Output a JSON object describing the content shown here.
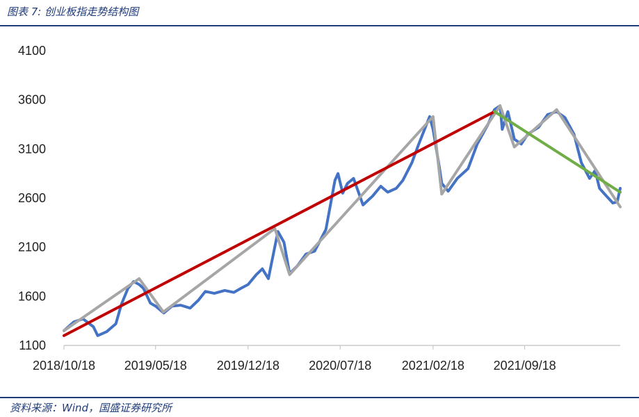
{
  "header": {
    "title": "图表 7:  创业板指走势结构图"
  },
  "footer": {
    "source": "资料来源：Wind，国盛证券研究所"
  },
  "chart_data": {
    "type": "line",
    "title": "图表 7:  创业板指走势结构图",
    "xlabel": "",
    "ylabel": "",
    "ylim": [
      1100,
      4100
    ],
    "yticks": [
      1100,
      1600,
      2100,
      2600,
      3100,
      3600,
      4100
    ],
    "xlim": [
      "2018/10/18",
      "2022/04/27"
    ],
    "xticks": [
      "2018/10/18",
      "2019/05/18",
      "2019/12/18",
      "2020/07/18",
      "2021/02/18",
      "2021/09/18"
    ],
    "grid": false,
    "legend": "none",
    "series": [
      {
        "role": "index",
        "color": "#4472c4",
        "points": [
          [
            "2018/10/18",
            1250
          ],
          [
            "2018/11/10",
            1340
          ],
          [
            "2018/12/01",
            1370
          ],
          [
            "2018/12/25",
            1290
          ],
          [
            "2019/01/04",
            1200
          ],
          [
            "2019/01/25",
            1240
          ],
          [
            "2019/02/15",
            1320
          ],
          [
            "2019/02/28",
            1520
          ],
          [
            "2019/03/15",
            1680
          ],
          [
            "2019/03/28",
            1750
          ],
          [
            "2019/04/10",
            1720
          ],
          [
            "2019/04/20",
            1680
          ],
          [
            "2019/05/06",
            1530
          ],
          [
            "2019/05/18",
            1500
          ],
          [
            "2019/06/06",
            1430
          ],
          [
            "2019/06/25",
            1500
          ],
          [
            "2019/07/15",
            1510
          ],
          [
            "2019/08/06",
            1480
          ],
          [
            "2019/08/25",
            1560
          ],
          [
            "2019/09/10",
            1650
          ],
          [
            "2019/10/01",
            1630
          ],
          [
            "2019/10/25",
            1660
          ],
          [
            "2019/11/15",
            1640
          ],
          [
            "2019/12/01",
            1680
          ],
          [
            "2019/12/18",
            1720
          ],
          [
            "2020/01/06",
            1820
          ],
          [
            "2020/01/20",
            1880
          ],
          [
            "2020/02/03",
            1780
          ],
          [
            "2020/02/25",
            2260
          ],
          [
            "2020/03/10",
            2150
          ],
          [
            "2020/03/23",
            1830
          ],
          [
            "2020/04/10",
            1910
          ],
          [
            "2020/04/30",
            2030
          ],
          [
            "2020/05/20",
            2060
          ],
          [
            "2020/06/15",
            2280
          ],
          [
            "2020/07/06",
            2780
          ],
          [
            "2020/07/13",
            2850
          ],
          [
            "2020/07/24",
            2650
          ],
          [
            "2020/08/04",
            2750
          ],
          [
            "2020/08/18",
            2800
          ],
          [
            "2020/09/09",
            2530
          ],
          [
            "2020/10/01",
            2620
          ],
          [
            "2020/10/20",
            2720
          ],
          [
            "2020/11/05",
            2660
          ],
          [
            "2020/11/25",
            2700
          ],
          [
            "2020/12/10",
            2780
          ],
          [
            "2020/12/31",
            2960
          ],
          [
            "2021/01/15",
            3140
          ],
          [
            "2021/02/10",
            3430
          ],
          [
            "2021/02/18",
            3300
          ],
          [
            "2021/03/05",
            2900
          ],
          [
            "2021/03/10",
            2750
          ],
          [
            "2021/03/25",
            2670
          ],
          [
            "2021/04/15",
            2800
          ],
          [
            "2021/05/10",
            2900
          ],
          [
            "2021/05/31",
            3150
          ],
          [
            "2021/06/25",
            3350
          ],
          [
            "2021/07/10",
            3500
          ],
          [
            "2021/07/23",
            3540
          ],
          [
            "2021/07/28",
            3300
          ],
          [
            "2021/08/10",
            3480
          ],
          [
            "2021/08/25",
            3200
          ],
          [
            "2021/09/10",
            3150
          ],
          [
            "2021/09/25",
            3250
          ],
          [
            "2021/10/20",
            3320
          ],
          [
            "2021/11/10",
            3450
          ],
          [
            "2021/12/01",
            3480
          ],
          [
            "2021/12/20",
            3420
          ],
          [
            "2022/01/10",
            3250
          ],
          [
            "2022/01/27",
            2960
          ],
          [
            "2022/02/15",
            2800
          ],
          [
            "2022/02/28",
            2880
          ],
          [
            "2022/03/10",
            2700
          ],
          [
            "2022/03/20",
            2650
          ],
          [
            "2022/04/10",
            2550
          ],
          [
            "2022/04/20",
            2560
          ],
          [
            "2022/04/27",
            2700
          ]
        ]
      },
      {
        "role": "structure",
        "color": "#a6a6a6",
        "points": [
          [
            "2018/10/18",
            1250
          ],
          [
            "2019/04/10",
            1780
          ],
          [
            "2019/06/05",
            1440
          ],
          [
            "2020/02/18",
            2290
          ],
          [
            "2020/03/23",
            1820
          ],
          [
            "2021/02/18",
            3430
          ],
          [
            "2021/03/10",
            2640
          ],
          [
            "2021/07/23",
            3540
          ],
          [
            "2021/08/25",
            3120
          ],
          [
            "2021/12/01",
            3500
          ],
          [
            "2022/04/27",
            2510
          ]
        ]
      },
      {
        "role": "uptrend",
        "color": "#c00000",
        "points": [
          [
            "2018/10/18",
            1200
          ],
          [
            "2021/07/10",
            3480
          ]
        ]
      },
      {
        "role": "downtrend",
        "color": "#70ad47",
        "points": [
          [
            "2021/07/10",
            3480
          ],
          [
            "2022/04/27",
            2660
          ]
        ]
      }
    ]
  }
}
